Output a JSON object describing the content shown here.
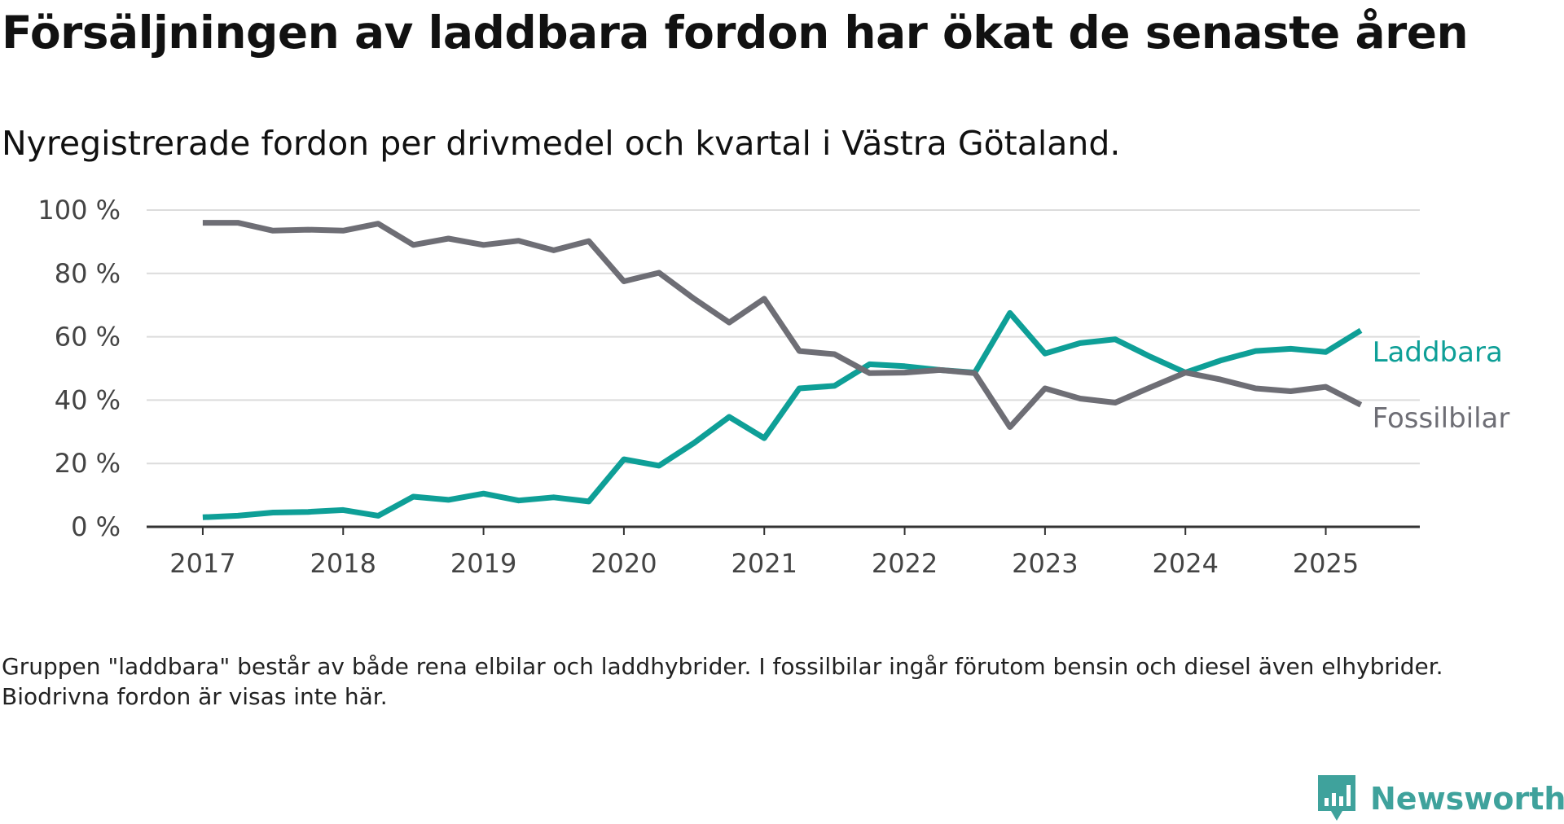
{
  "title": "Försäljningen av laddbara fordon har ökat de senaste åren",
  "subtitle": "Nyregistrerade fordon per drivmedel och kvartal i Västra Götaland.",
  "note": "Gruppen \"laddbara\" består av både rena elbilar och laddhybrider. I fossilbilar ingår förutom bensin och diesel även elhybrider. Biodrivna fordon är visas inte här.",
  "brand": {
    "name": "Newsworthy",
    "icon": "newsworthy-logo-icon",
    "color": "#3fa29c"
  },
  "chart_data": {
    "type": "line",
    "x": [
      2017.0,
      2017.25,
      2017.5,
      2017.75,
      2018.0,
      2018.25,
      2018.5,
      2018.75,
      2019.0,
      2019.25,
      2019.5,
      2019.75,
      2020.0,
      2020.25,
      2020.5,
      2020.75,
      2021.0,
      2021.25,
      2021.5,
      2021.75,
      2022.0,
      2022.25,
      2022.5,
      2022.75,
      2023.0,
      2023.25,
      2023.5,
      2023.75,
      2024.0,
      2024.25,
      2024.5,
      2024.75,
      2025.0,
      2025.25
    ],
    "xlim": [
      2016.6,
      2025.67
    ],
    "xticks": [
      2017,
      2018,
      2019,
      2020,
      2021,
      2022,
      2023,
      2024,
      2025
    ],
    "ylim": [
      0,
      100
    ],
    "yticks": [
      0,
      20,
      40,
      60,
      80,
      100
    ],
    "ytick_labels": [
      "0 %",
      "20 %",
      "40 %",
      "60 %",
      "80 %",
      "100 %"
    ],
    "grid": true,
    "series": [
      {
        "name": "Laddbara",
        "color": "#0e9f97",
        "values": [
          3,
          3.5,
          4.5,
          4.7,
          5.3,
          3.5,
          9.5,
          8.5,
          10.5,
          8.3,
          9.3,
          8.0,
          21.3,
          19.3,
          26.5,
          34.7,
          28.0,
          43.7,
          44.5,
          51.3,
          50.7,
          49.5,
          48.7,
          67.5,
          54.7,
          58.0,
          59.2,
          53.7,
          48.7,
          52.5,
          55.5,
          56.2,
          55.2,
          62.0
        ]
      },
      {
        "name": "Fossilbilar",
        "color": "#6e6e75",
        "values": [
          96,
          96,
          93.5,
          93.8,
          93.5,
          95.7,
          89.0,
          91.0,
          89.0,
          90.3,
          87.3,
          90.2,
          77.5,
          80.2,
          72.0,
          64.5,
          72.0,
          55.5,
          54.5,
          48.5,
          48.7,
          49.5,
          48.5,
          31.5,
          43.7,
          40.5,
          39.2,
          44.0,
          48.7,
          46.5,
          43.7,
          42.8,
          44.2,
          38.5
        ]
      }
    ]
  }
}
